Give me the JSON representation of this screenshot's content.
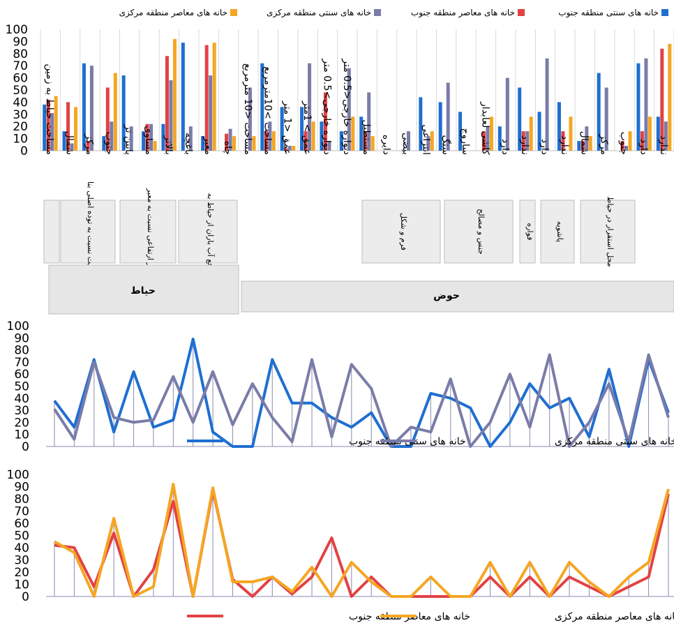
{
  "chart_data": [
    {
      "type": "bar",
      "legend_position": "top",
      "ylim": [
        0,
        100
      ],
      "yticks": [
        0,
        10,
        20,
        30,
        40,
        50,
        60,
        70,
        80,
        90,
        100
      ],
      "grid": true,
      "categories": [
        "مساحت حیاط به زمین",
        "شمال",
        "مرکز",
        "جنوب",
        "پایین تر",
        "مساوی",
        "بالاتر",
        "باغچه",
        "معبر",
        "چاه",
        "مساحت <10 مترمربع",
        "مساحت >10مترمربع",
        "عمق <1 متر",
        "عمق > 1متر",
        "دیواره خارجی>0.5 متر",
        "دیواره خارجی<0.5 متر",
        "مستطیل",
        "دایره",
        "بیضی",
        "انتزاعی",
        "سنگ",
        "ساروج",
        "کاشی لعابدار",
        "دارد",
        "ندارد",
        "دارد",
        "ندارد",
        "شمال",
        "مرکز",
        "جنوب",
        "دارد",
        "ندارد"
      ],
      "series": [
        {
          "name": "خانه های سنتی منطقه جنوب",
          "color": "#1F6FD1",
          "values": [
            38,
            16,
            72,
            12,
            62,
            16,
            22,
            89,
            12,
            0,
            0,
            72,
            36,
            36,
            24,
            16,
            28,
            0,
            0,
            44,
            40,
            32,
            0,
            20,
            52,
            32,
            40,
            8,
            64,
            0,
            72,
            28
          ]
        },
        {
          "name": "خانه های معاصر منطقه جنوب",
          "color": "#E24244",
          "values": [
            42,
            40,
            8,
            52,
            0,
            22,
            78,
            0,
            87,
            14,
            0,
            16,
            2,
            16,
            48,
            0,
            16,
            0,
            0,
            0,
            0,
            0,
            16,
            0,
            16,
            0,
            16,
            8,
            0,
            8,
            16,
            84
          ]
        },
        {
          "name": "خانه های سنتی منطقه مرکزی",
          "color": "#7A7CA8",
          "values": [
            31,
            6,
            70,
            24,
            20,
            22,
            58,
            20,
            62,
            18,
            52,
            24,
            4,
            72,
            8,
            68,
            48,
            0,
            16,
            12,
            56,
            0,
            20,
            60,
            16,
            76,
            0,
            20,
            52,
            4,
            76,
            24
          ]
        },
        {
          "name": "خانه های معاصر منطقه مرکزی",
          "color": "#F5A623",
          "values": [
            45,
            36,
            0,
            64,
            0,
            8,
            92,
            0,
            89,
            12,
            12,
            16,
            4,
            24,
            0,
            28,
            12,
            0,
            0,
            16,
            0,
            0,
            28,
            0,
            28,
            0,
            28,
            12,
            0,
            16,
            28,
            88
          ]
        }
      ],
      "group_labels": [
        {
          "text": "موقعیت نسبت به توده اصلی بنا"
        },
        {
          "text": "تراز ارتفاعی نسبت به معبر"
        },
        {
          "text": "دفع آب باران از حیاط به"
        },
        {
          "text": "فرم و شکل"
        },
        {
          "text": "جنس و مصالح"
        },
        {
          "text": "فواره"
        },
        {
          "text": "پاشویه"
        },
        {
          "text": "محل استقرار در حیاط"
        }
      ],
      "section_labels": [
        {
          "text": "حیاط"
        },
        {
          "text": "حوض"
        }
      ]
    },
    {
      "type": "line",
      "ylim": [
        0,
        100
      ],
      "yticks": [
        0,
        10,
        20,
        30,
        40,
        50,
        60,
        70,
        80,
        90,
        100
      ],
      "series": [
        {
          "name": "خانه های سنتی منطقه جنوب",
          "color": "#1F6FD1",
          "values": [
            38,
            16,
            72,
            12,
            62,
            16,
            22,
            89,
            12,
            0,
            0,
            72,
            36,
            36,
            24,
            16,
            28,
            0,
            0,
            44,
            40,
            32,
            0,
            20,
            52,
            32,
            40,
            8,
            64,
            0,
            72,
            28
          ]
        },
        {
          "name": "خانه های سنتی منطقه مرکزی",
          "color": "#7A7CA8",
          "values": [
            31,
            6,
            70,
            24,
            20,
            22,
            58,
            20,
            62,
            18,
            52,
            24,
            4,
            72,
            8,
            68,
            48,
            0,
            16,
            12,
            56,
            0,
            20,
            60,
            16,
            76,
            0,
            20,
            52,
            4,
            76,
            24
          ]
        }
      ]
    },
    {
      "type": "line",
      "ylim": [
        0,
        100
      ],
      "yticks": [
        0,
        10,
        20,
        30,
        40,
        50,
        60,
        70,
        80,
        90,
        100
      ],
      "series": [
        {
          "name": "خانه های معاصر منطقه جنوب",
          "color": "#E24244",
          "values": [
            42,
            40,
            8,
            52,
            0,
            22,
            78,
            0,
            87,
            14,
            0,
            16,
            2,
            16,
            48,
            0,
            16,
            0,
            0,
            0,
            0,
            0,
            16,
            0,
            16,
            0,
            16,
            8,
            0,
            8,
            16,
            84
          ]
        },
        {
          "name": "خانه های معاصر منطقه مرکزی",
          "color": "#F5A623",
          "values": [
            45,
            36,
            0,
            64,
            0,
            8,
            92,
            0,
            89,
            12,
            12,
            16,
            4,
            24,
            0,
            28,
            12,
            0,
            0,
            16,
            0,
            0,
            28,
            0,
            28,
            0,
            28,
            12,
            0,
            16,
            28,
            88
          ]
        }
      ]
    }
  ]
}
